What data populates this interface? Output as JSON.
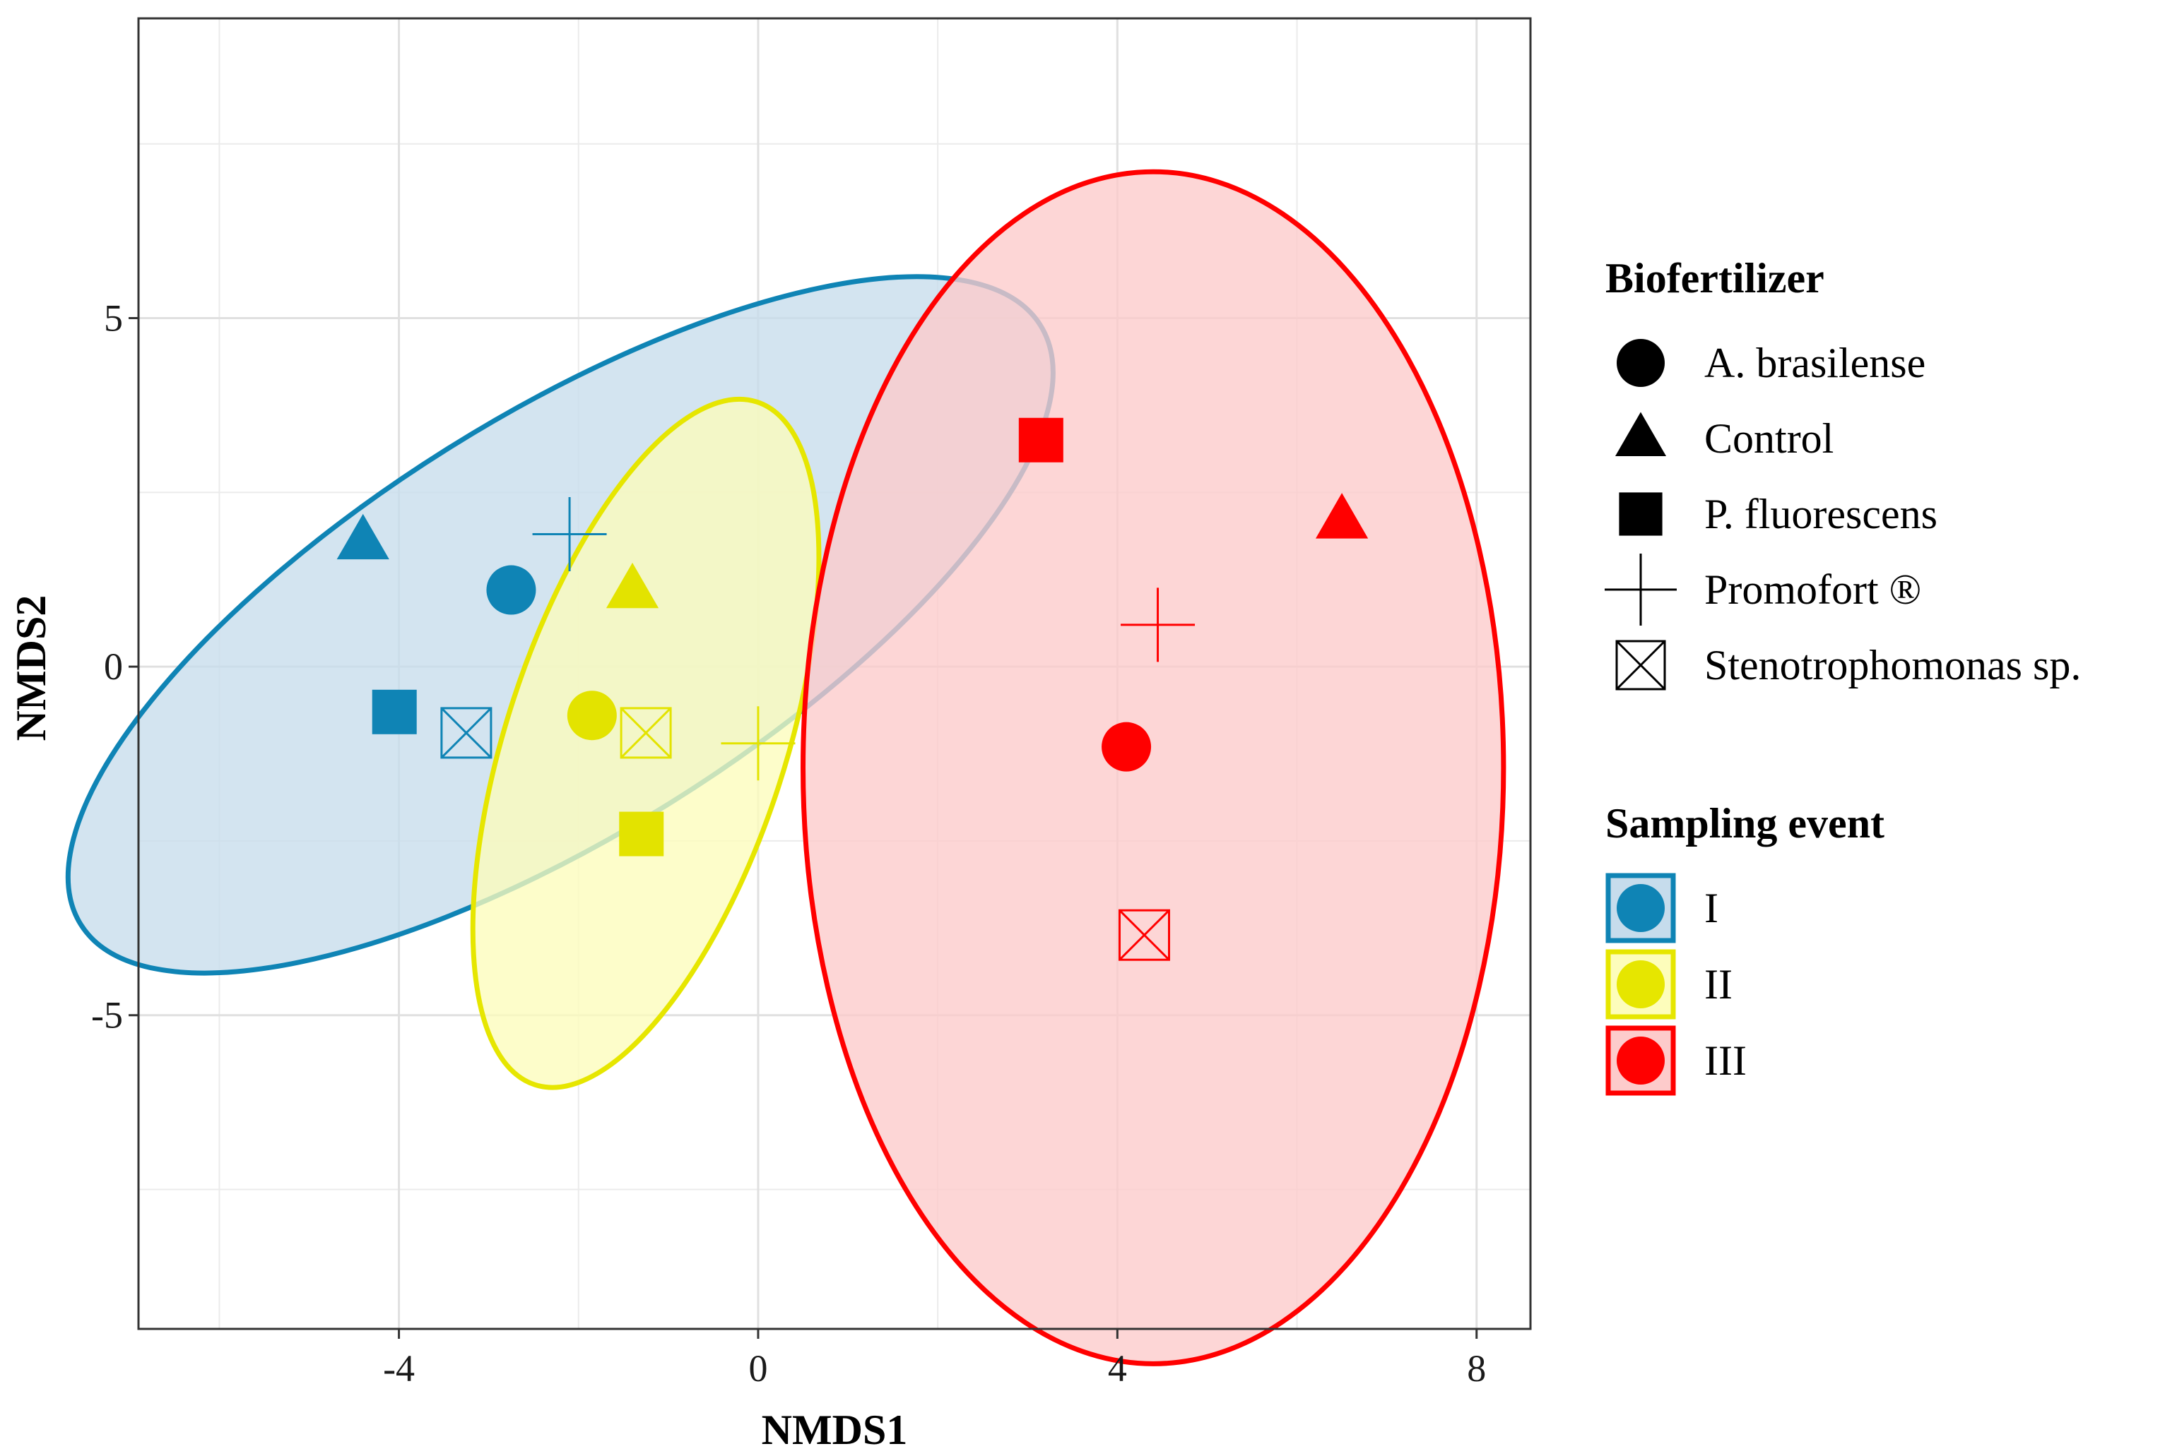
{
  "chart_data": {
    "type": "scatter",
    "title": "",
    "xlabel": "NMDS1",
    "ylabel": "NMDS2",
    "xlim": [
      -6.9,
      8.6
    ],
    "ylim": [
      -9.5,
      9.3
    ],
    "x_ticks": [
      -4,
      0,
      4,
      8
    ],
    "y_ticks": [
      5,
      0,
      -5
    ],
    "x_tick_labels": [
      "-4",
      "0",
      "4",
      "8"
    ],
    "y_tick_labels": [
      "5",
      "0",
      "-5"
    ],
    "grid": true,
    "legend_position": "right",
    "shape_legend": {
      "title": "Biofertilizer",
      "entries": [
        {
          "label": "A. brasilense",
          "shape": "circle"
        },
        {
          "label": "Control",
          "shape": "triangle"
        },
        {
          "label": "P. fluorescens",
          "shape": "square"
        },
        {
          "label": "Promofort ®",
          "shape": "plus"
        },
        {
          "label": "Stenotrophomonas sp.",
          "shape": "boxcross"
        }
      ]
    },
    "color_legend": {
      "title": "Sampling event",
      "entries": [
        {
          "label": "I",
          "color": "#0f84b5"
        },
        {
          "label": "II",
          "color": "#e6e600"
        },
        {
          "label": "III",
          "color": "#ff0000"
        }
      ]
    },
    "series": [
      {
        "name": "I",
        "color": "#0f84b5",
        "fill": "#c6dcec",
        "ellipse": {
          "cx": -2.2,
          "cy": 0.6,
          "rx": 6.3,
          "ry": 3.0,
          "angle": 32
        },
        "points": [
          {
            "biofertilizer": "A. brasilense",
            "shape": "circle",
            "x": -2.75,
            "y": 1.1
          },
          {
            "biofertilizer": "Control",
            "shape": "triangle",
            "x": -4.4,
            "y": 1.8
          },
          {
            "biofertilizer": "P. fluorescens",
            "shape": "square",
            "x": -4.05,
            "y": -0.65
          },
          {
            "biofertilizer": "Promofort ®",
            "shape": "plus",
            "x": -2.1,
            "y": 1.9
          },
          {
            "biofertilizer": "Stenotrophomonas sp.",
            "shape": "boxcross",
            "x": -3.25,
            "y": -0.95
          }
        ]
      },
      {
        "name": "II",
        "color": "#e6e600",
        "fill": "#fdfdbb",
        "ellipse": {
          "cx": -1.25,
          "cy": -1.1,
          "rx": 4.0,
          "ry": 2.0,
          "angle": 72
        },
        "points": [
          {
            "biofertilizer": "A. brasilense",
            "shape": "circle",
            "x": -1.85,
            "y": -0.7
          },
          {
            "biofertilizer": "Control",
            "shape": "triangle",
            "x": -1.4,
            "y": 1.1
          },
          {
            "biofertilizer": "P. fluorescens",
            "shape": "square",
            "x": -1.3,
            "y": -2.4
          },
          {
            "biofertilizer": "Promofort ®",
            "shape": "plus",
            "x": 0.0,
            "y": -1.1
          },
          {
            "biofertilizer": "Stenotrophomonas sp.",
            "shape": "boxcross",
            "x": -1.25,
            "y": -0.95
          }
        ]
      },
      {
        "name": "III",
        "color": "#ff0000",
        "fill": "#fdcbcb",
        "ellipse": {
          "cx": 4.4,
          "cy": -1.45,
          "rx": 3.9,
          "ry": 8.55,
          "angle": 0
        },
        "points": [
          {
            "biofertilizer": "A. brasilense",
            "shape": "circle",
            "x": 4.1,
            "y": -1.15
          },
          {
            "biofertilizer": "Control",
            "shape": "triangle",
            "x": 6.5,
            "y": 2.1
          },
          {
            "biofertilizer": "P. fluorescens",
            "shape": "square",
            "x": 3.15,
            "y": 3.25
          },
          {
            "biofertilizer": "Promofort ®",
            "shape": "plus",
            "x": 4.45,
            "y": 0.6
          },
          {
            "biofertilizer": "Stenotrophomonas sp.",
            "shape": "boxcross",
            "x": 4.3,
            "y": -3.85
          }
        ]
      }
    ]
  }
}
